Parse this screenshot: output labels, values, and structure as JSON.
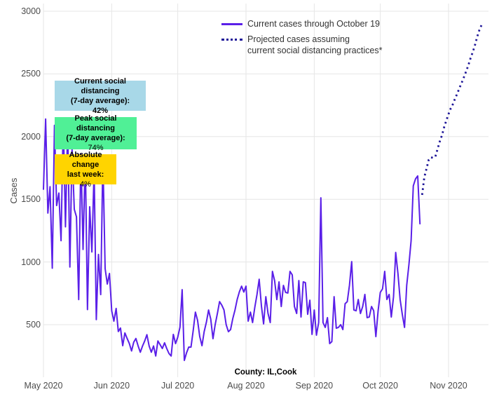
{
  "y_axis_title": "Cases",
  "legend": {
    "current_label": "Current cases through October 19",
    "projected_label_line1": "Projected cases assuming",
    "projected_label_line2": "current social distancing practices*"
  },
  "annotations": {
    "current_distancing": {
      "line1": "Current social distancing",
      "line2": "(7-day average):",
      "value": "42%"
    },
    "peak_distancing": {
      "line1": "Peak social distancing",
      "line2": "(7-day average):",
      "value": "74%"
    },
    "absolute_change": {
      "line1": "Absolute change",
      "line2": "last week:",
      "value": "4%"
    }
  },
  "colors": {
    "current_line": "#5a1fe8",
    "projected_line": "#1e1698",
    "grid": "#e6e6e6",
    "tick_text": "#4c4c4c",
    "annotation_current_bg": "#a8d8e8",
    "annotation_peak_bg": "#50f096",
    "annotation_change_bg": "#ffd400",
    "background": "#ffffff"
  },
  "chart_data": {
    "type": "line",
    "title": "",
    "xlabel": "County: IL,Cook",
    "ylabel": "Cases",
    "x_ticks": [
      "May 2020",
      "Jun 2020",
      "Jul 2020",
      "Aug 2020",
      "Sep 2020",
      "Oct 2020",
      "Nov 2020"
    ],
    "month_start_day_index": [
      0,
      31,
      61,
      92,
      123,
      153,
      184
    ],
    "y_ticks": [
      500,
      1000,
      1500,
      2000,
      2500,
      3000
    ],
    "ylim": [
      90,
      3035
    ],
    "grid": true,
    "legend_position": "top-center",
    "series": [
      {
        "name": "Current cases through October 19",
        "style": "solid",
        "color": "#5a1fe8",
        "start_date": "2020-05-01",
        "end_date": "2020-10-19",
        "day_offset": 0,
        "values": [
          1580,
          2140,
          1390,
          1600,
          950,
          2090,
          1450,
          1550,
          1170,
          2150,
          1280,
          2100,
          960,
          1900,
          1420,
          1360,
          700,
          1860,
          1100,
          1840,
          620,
          1440,
          1080,
          1740,
          540,
          1060,
          740,
          1840,
          947,
          824,
          908,
          610,
          528,
          629,
          445,
          473,
          332,
          434,
          390,
          350,
          290,
          360,
          390,
          330,
          280,
          330,
          370,
          420,
          330,
          280,
          330,
          250,
          370,
          340,
          310,
          355,
          310,
          270,
          250,
          422,
          349,
          400,
          480,
          779,
          215,
          276,
          321,
          321,
          450,
          600,
          534,
          405,
          332,
          444,
          520,
          617,
          544,
          388,
          500,
          590,
          684,
          656,
          617,
          500,
          444,
          461,
          550,
          617,
          700,
          763,
          807,
          760,
          807,
          528,
          600,
          517,
          640,
          741,
          862,
          650,
          506,
          723,
          590,
          517,
          925,
          852,
          700,
          841,
          645,
          813,
          757,
          752,
          925,
          897,
          645,
          589,
          852,
          561,
          841,
          835,
          583,
          695,
          422,
          617,
          416,
          517,
          1512,
          517,
          478,
          556,
          349,
          365,
          723,
          472,
          478,
          500,
          461,
          667,
          684,
          813,
          1003,
          617,
          611,
          701,
          589,
          645,
          741,
          556,
          561,
          645,
          611,
          405,
          611,
          757,
          785,
          925,
          701,
          741,
          561,
          723,
          1076,
          908,
          701,
          583,
          478,
          813,
          981,
          1171,
          1607,
          1663,
          1686,
          1305
        ]
      },
      {
        "name": "Projected cases assuming current social distancing practices*",
        "style": "dotted",
        "color": "#1e1698",
        "start_date": "2020-10-20",
        "end_date": "2020-11-16",
        "day_offset": 172,
        "values": [
          1535,
          1675,
          1745,
          1815,
          1835,
          1830,
          1840,
          1900,
          1960,
          2010,
          2075,
          2130,
          2180,
          2225,
          2260,
          2305,
          2345,
          2390,
          2430,
          2475,
          2520,
          2570,
          2625,
          2675,
          2730,
          2795,
          2850,
          2890
        ]
      }
    ]
  }
}
